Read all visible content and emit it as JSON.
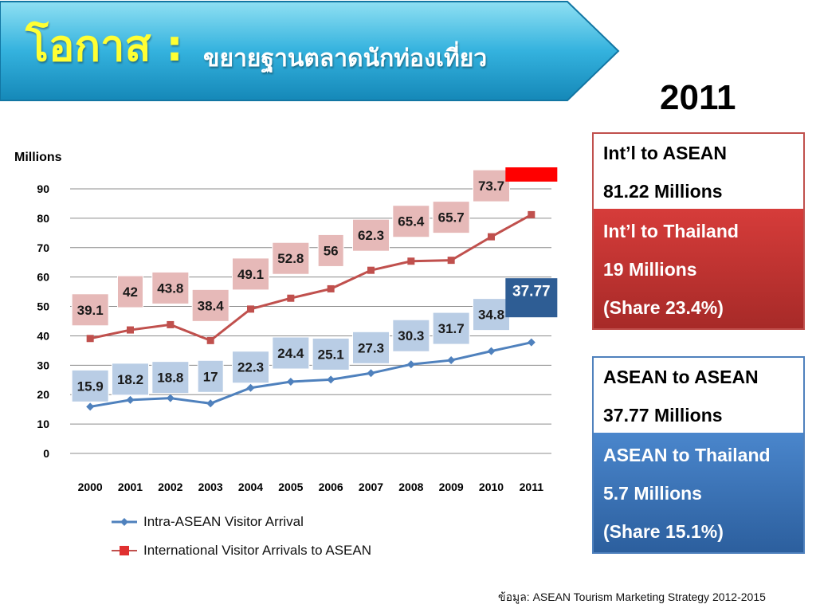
{
  "banner": {
    "title": "โอกาส :",
    "subtitle": "ขยายฐานตลาดนักท่องเที่ยว"
  },
  "year_label": "2011",
  "chart_data": {
    "type": "line",
    "ylabel": "Millions",
    "ylim": [
      0,
      90
    ],
    "yticks": [
      0,
      10,
      20,
      30,
      40,
      50,
      60,
      70,
      80,
      90
    ],
    "grid": true,
    "legend_position": "bottom",
    "categories": [
      "2000",
      "2001",
      "2002",
      "2003",
      "2004",
      "2005",
      "2006",
      "2007",
      "2008",
      "2009",
      "2010",
      "2011"
    ],
    "series": [
      {
        "name": "Intra-ASEAN Visitor Arrival",
        "color": "#4f81bd",
        "label_color": "#b9cde5",
        "highlight_color": "#2e5d94",
        "marker": "diamond",
        "values": [
          15.9,
          18.2,
          18.8,
          17,
          22.3,
          24.4,
          25.1,
          27.3,
          30.3,
          31.7,
          34.8,
          37.77
        ]
      },
      {
        "name": "International Visitor Arrivals to ASEAN",
        "color": "#c0504d",
        "label_color": "#e6b9b8",
        "highlight_color": "#ff0000",
        "marker": "square",
        "values": [
          39.1,
          42,
          43.8,
          38.4,
          49.1,
          52.8,
          56,
          62.3,
          65.4,
          65.7,
          73.7,
          81.22
        ]
      }
    ]
  },
  "info_boxes": {
    "intl": {
      "line1": "Int’l to ASEAN",
      "line2": "81.22 Millions",
      "line3": "Int’l to Thailand",
      "line4": "19  Millions",
      "line5": "(Share 23.4%)"
    },
    "asean": {
      "line1": "ASEAN to ASEAN",
      "line2": "37.77 Millions",
      "line3": "ASEAN to Thailand",
      "line4": "5.7 Millions",
      "line5": "(Share 15.1%)"
    }
  },
  "source": "ข้อมูล: ASEAN Tourism Marketing Strategy 2012-2015",
  "colors": {
    "banner_light": "#7fd6ee",
    "banner_dark": "#1a9bc9",
    "banner_title": "#ffff33"
  }
}
